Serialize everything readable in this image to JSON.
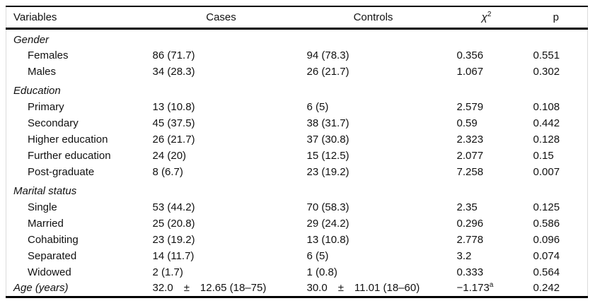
{
  "table": {
    "columns": {
      "variables": "Variables",
      "cases": "Cases",
      "controls": "Controls",
      "chi_base": "χ",
      "chi_sup": "2",
      "p": "p"
    },
    "rows": [
      {
        "type": "section",
        "label": "Gender",
        "cases": "",
        "controls": "",
        "chi2": "",
        "p": ""
      },
      {
        "type": "item",
        "label": "Females",
        "cases": "86 (71.7)",
        "controls": "94 (78.3)",
        "chi2": "0.356",
        "p": "0.551"
      },
      {
        "type": "item",
        "label": "Males",
        "cases": "34 (28.3)",
        "controls": "26 (21.7)",
        "chi2": "1.067",
        "p": "0.302"
      },
      {
        "type": "section",
        "label": "Education",
        "cases": "",
        "controls": "",
        "chi2": "",
        "p": ""
      },
      {
        "type": "item",
        "label": "Primary",
        "cases": "13 (10.8)",
        "controls": "6 (5)",
        "chi2": "2.579",
        "p": "0.108"
      },
      {
        "type": "item",
        "label": "Secondary",
        "cases": "45 (37.5)",
        "controls": "38 (31.7)",
        "chi2": "0.59",
        "p": "0.442"
      },
      {
        "type": "item",
        "label": "Higher education",
        "cases": "26 (21.7)",
        "controls": "37 (30.8)",
        "chi2": "2.323",
        "p": "0.128"
      },
      {
        "type": "item",
        "label": "Further education",
        "cases": "24 (20)",
        "controls": "15 (12.5)",
        "chi2": "2.077",
        "p": "0.15"
      },
      {
        "type": "item",
        "label": "Post-graduate",
        "cases": "8 (6.7)",
        "controls": "23 (19.2)",
        "chi2": "7.258",
        "p": "0.007"
      },
      {
        "type": "section",
        "label": "Marital status",
        "cases": "",
        "controls": "",
        "chi2": "",
        "p": ""
      },
      {
        "type": "item",
        "label": "Single",
        "cases": "53 (44.2)",
        "controls": "70 (58.3)",
        "chi2": "2.35",
        "p": "0.125"
      },
      {
        "type": "item",
        "label": "Married",
        "cases": "25 (20.8)",
        "controls": "29 (24.2)",
        "chi2": "0.296",
        "p": "0.586"
      },
      {
        "type": "item",
        "label": "Cohabiting",
        "cases": "23 (19.2)",
        "controls": "13 (10.8)",
        "chi2": "2.778",
        "p": "0.096"
      },
      {
        "type": "item",
        "label": "Separated",
        "cases": "14 (11.7)",
        "controls": "6 (5)",
        "chi2": "3.2",
        "p": "0.074"
      },
      {
        "type": "item",
        "label": "Widowed",
        "cases": "2 (1.7)",
        "controls": "1 (0.8)",
        "chi2": "0.333",
        "p": "0.564"
      },
      {
        "type": "age",
        "label": "Age (years)",
        "cases": "32.0 ± 12.65 (18–75)",
        "controls": "30.0 ± 11.01 (18–60)",
        "chi2": "−1.173",
        "chi2_sup": "a",
        "p": "0.242"
      }
    ]
  }
}
